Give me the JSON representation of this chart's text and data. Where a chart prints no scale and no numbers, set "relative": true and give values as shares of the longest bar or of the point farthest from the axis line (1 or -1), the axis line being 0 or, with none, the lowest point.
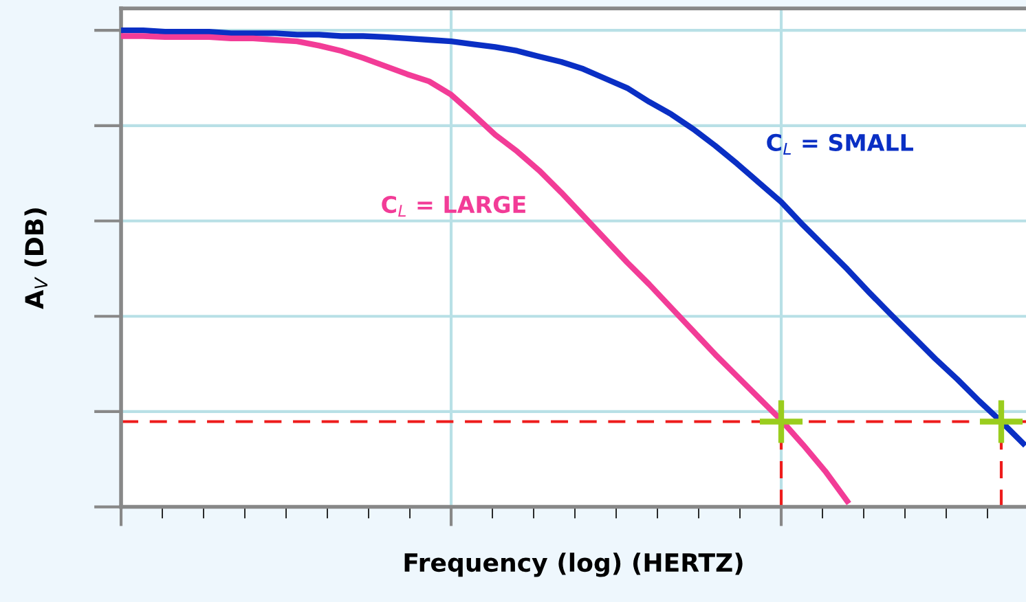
{
  "chart_data": {
    "type": "line",
    "relative": true,
    "xlabel": "Frequency (log) (HERTZ)",
    "ylabel": "A$_{V}$ (DB)",
    "categories": [
      null,
      null,
      null,
      null,
      null,
      null,
      null,
      null,
      null,
      null,
      null,
      null,
      null,
      null,
      null,
      null,
      null,
      null,
      null,
      null,
      null,
      null,
      null,
      null,
      null,
      null,
      null,
      null,
      null,
      null,
      null,
      null,
      null,
      null,
      null,
      null,
      null,
      null,
      null,
      null,
      null,
      null
    ],
    "series": [
      {
        "name": "C$_{L}$ = SMALL",
        "color": "#0a2fc4",
        "values": [
          1.0,
          1.0,
          0.997,
          0.997,
          0.997,
          0.994,
          0.994,
          0.994,
          0.991,
          0.991,
          0.988,
          0.988,
          0.986,
          0.983,
          0.98,
          0.977,
          0.971,
          0.965,
          0.957,
          0.945,
          0.934,
          0.919,
          0.899,
          0.879,
          0.85,
          0.824,
          0.793,
          0.758,
          0.72,
          0.68,
          0.64,
          0.591,
          0.545,
          0.499,
          0.45,
          0.403,
          0.357,
          0.311,
          0.268,
          0.222,
          0.179,
          0.133
        ]
      },
      {
        "name": "C$_{L}$ = LARGE",
        "color": "#f23c97",
        "values": [
          0.988,
          0.988,
          0.986,
          0.986,
          0.986,
          0.983,
          0.983,
          0.98,
          0.977,
          0.968,
          0.957,
          0.942,
          0.925,
          0.908,
          0.893,
          0.865,
          0.824,
          0.781,
          0.746,
          0.706,
          0.66,
          0.611,
          0.562,
          0.513,
          0.467,
          0.418,
          0.369,
          0.32,
          0.274,
          0.228,
          0.182,
          0.13,
          0.075,
          0.012,
          null,
          null,
          null,
          null,
          null,
          null,
          null,
          null
        ]
      }
    ],
    "ref_lines": [
      {
        "axis": "y",
        "value": 0.179,
        "color": "#ee1c1c",
        "line_style": "dashed"
      }
    ],
    "grid": true,
    "legend": false
  }
}
